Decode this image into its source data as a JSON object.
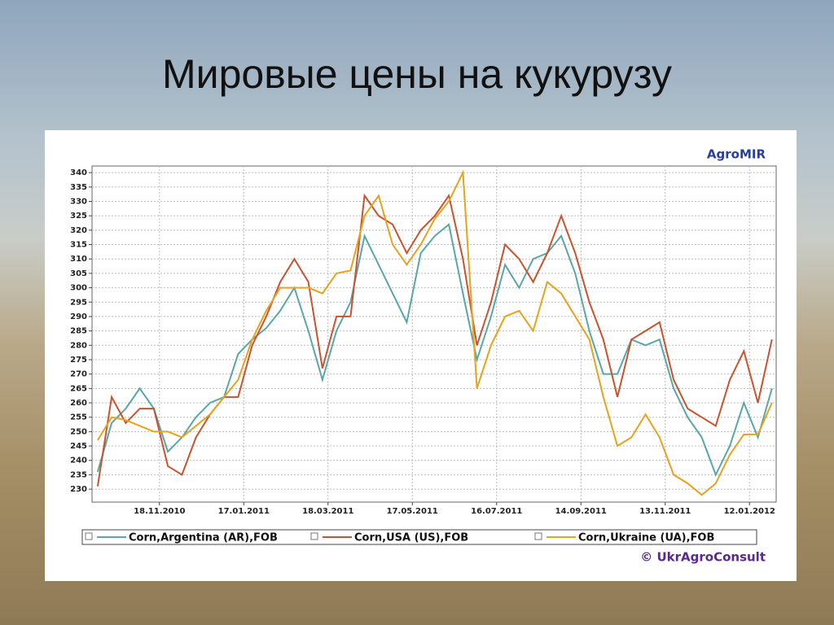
{
  "chart_data": {
    "type": "line",
    "title": "Мировые цены на кукурузу",
    "annotations": [
      "AgroMIR",
      "© UkrAgroConsult"
    ],
    "x": [
      "05.10.2010",
      "15.10.2010",
      "25.10.2010",
      "04.11.2010",
      "14.11.2010",
      "24.11.2010",
      "04.12.2010",
      "14.12.2010",
      "24.12.2010",
      "03.01.2011",
      "13.01.2011",
      "23.01.2011",
      "02.02.2011",
      "12.02.2011",
      "22.02.2011",
      "04.03.2011",
      "14.03.2011",
      "24.03.2011",
      "03.04.2011",
      "13.04.2011",
      "23.04.2011",
      "03.05.2011",
      "13.05.2011",
      "23.05.2011",
      "02.06.2011",
      "12.06.2011",
      "22.06.2011",
      "02.07.2011",
      "12.07.2011",
      "22.07.2011",
      "01.08.2011",
      "11.08.2011",
      "21.08.2011",
      "31.08.2011",
      "10.09.2011",
      "20.09.2011",
      "30.09.2011",
      "10.10.2011",
      "20.10.2011",
      "30.10.2011",
      "09.11.2011",
      "19.11.2011",
      "29.11.2011",
      "09.12.2011",
      "19.12.2011",
      "29.12.2011",
      "08.01.2012",
      "18.01.2012",
      "28.01.2012"
    ],
    "series": [
      {
        "name": "Corn,Argentina (AR),FOB",
        "color": "#5aa6a8",
        "values": [
          236,
          253,
          258,
          265,
          258,
          243,
          248,
          255,
          260,
          262,
          277,
          282,
          286,
          292,
          300,
          285,
          268,
          285,
          295,
          318,
          308,
          298,
          288,
          312,
          318,
          322,
          298,
          275,
          290,
          308,
          300,
          310,
          312,
          318,
          305,
          285,
          270,
          270,
          282,
          280,
          282,
          265,
          255,
          248,
          235,
          245,
          260,
          248,
          265
        ]
      },
      {
        "name": "Corn,USA (US),FOB",
        "color": "#c9532e",
        "values": [
          231,
          262,
          253,
          258,
          258,
          238,
          235,
          248,
          256,
          262,
          262,
          280,
          290,
          302,
          310,
          302,
          272,
          290,
          290,
          332,
          325,
          322,
          312,
          320,
          325,
          332,
          310,
          280,
          295,
          315,
          310,
          302,
          312,
          325,
          312,
          295,
          282,
          262,
          282,
          285,
          288,
          268,
          258,
          255,
          252,
          268,
          278,
          260,
          282
        ]
      },
      {
        "name": "Corn,Ukraine (UA),FOB",
        "color": "#e8a21c",
        "values": [
          247,
          255,
          254,
          252,
          250,
          250,
          248,
          252,
          256,
          262,
          268,
          282,
          292,
          300,
          300,
          300,
          298,
          305,
          306,
          325,
          332,
          315,
          308,
          315,
          324,
          330,
          340,
          265,
          280,
          290,
          292,
          285,
          302,
          298,
          290,
          282,
          262,
          245,
          248,
          256,
          248,
          235,
          232,
          228,
          232,
          242,
          249,
          249,
          260
        ]
      }
    ],
    "xlim": [
      "01.10.2010",
      "31.01.2012"
    ],
    "xticks": [
      "18.11.2010",
      "17.01.2011",
      "18.03.2011",
      "17.05.2011",
      "16.07.2011",
      "14.09.2011",
      "13.11.2011",
      "12.01.2012"
    ],
    "ylim": [
      225.5,
      342.3
    ],
    "yticks": [
      230,
      235,
      240,
      245,
      250,
      255,
      260,
      265,
      270,
      275,
      280,
      285,
      290,
      295,
      300,
      305,
      310,
      315,
      320,
      325,
      330,
      335,
      340
    ],
    "grid": true
  }
}
